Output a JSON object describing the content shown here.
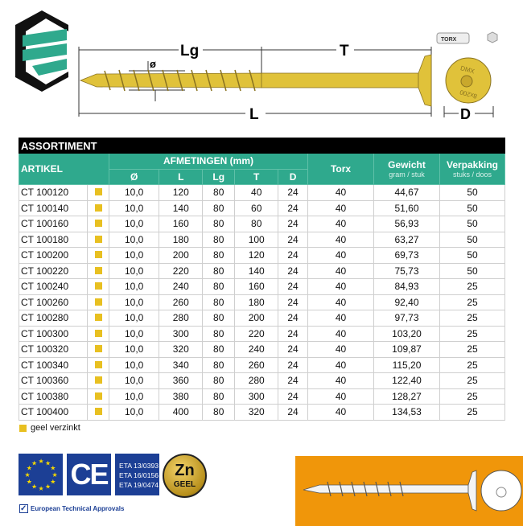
{
  "drawing": {
    "labels": {
      "lg": "Lg",
      "t": "T",
      "l": "L",
      "d": "D",
      "diameter": "ø",
      "bit": "TORX",
      "head_text_top": "DMX",
      "head_text_bottom": "8x200"
    }
  },
  "table": {
    "title": "ASSORTIMENT",
    "headers": {
      "artikel": "ARTIKEL",
      "afmetingen": "AFMETINGEN (mm)",
      "dims": [
        "Ø",
        "L",
        "Lg",
        "T",
        "D"
      ],
      "torx": "Torx",
      "gewicht": "Gewicht",
      "gewicht_unit": "gram / stuk",
      "verpakking": "Verpakking",
      "verpakking_unit": "stuks / doos"
    },
    "rows": [
      [
        "CT 100120",
        "10,0",
        "120",
        "80",
        "40",
        "24",
        "40",
        "44,67",
        "50"
      ],
      [
        "CT 100140",
        "10,0",
        "140",
        "80",
        "60",
        "24",
        "40",
        "51,60",
        "50"
      ],
      [
        "CT 100160",
        "10,0",
        "160",
        "80",
        "80",
        "24",
        "40",
        "56,93",
        "50"
      ],
      [
        "CT 100180",
        "10,0",
        "180",
        "80",
        "100",
        "24",
        "40",
        "63,27",
        "50"
      ],
      [
        "CT 100200",
        "10,0",
        "200",
        "80",
        "120",
        "24",
        "40",
        "69,73",
        "50"
      ],
      [
        "CT 100220",
        "10,0",
        "220",
        "80",
        "140",
        "24",
        "40",
        "75,73",
        "50"
      ],
      [
        "CT 100240",
        "10,0",
        "240",
        "80",
        "160",
        "24",
        "40",
        "84,93",
        "25"
      ],
      [
        "CT 100260",
        "10,0",
        "260",
        "80",
        "180",
        "24",
        "40",
        "92,40",
        "25"
      ],
      [
        "CT 100280",
        "10,0",
        "280",
        "80",
        "200",
        "24",
        "40",
        "97,73",
        "25"
      ],
      [
        "CT 100300",
        "10,0",
        "300",
        "80",
        "220",
        "24",
        "40",
        "103,20",
        "25"
      ],
      [
        "CT 100320",
        "10,0",
        "320",
        "80",
        "240",
        "24",
        "40",
        "109,87",
        "25"
      ],
      [
        "CT 100340",
        "10,0",
        "340",
        "80",
        "260",
        "24",
        "40",
        "115,20",
        "25"
      ],
      [
        "CT 100360",
        "10,0",
        "360",
        "80",
        "280",
        "24",
        "40",
        "122,40",
        "25"
      ],
      [
        "CT 100380",
        "10,0",
        "380",
        "80",
        "300",
        "24",
        "40",
        "128,27",
        "25"
      ],
      [
        "CT 100400",
        "10,0",
        "400",
        "80",
        "320",
        "24",
        "40",
        "134,53",
        "25"
      ]
    ]
  },
  "legend": {
    "label": "geel verzinkt",
    "color": "#e8c021"
  },
  "badges": {
    "ce": "CE",
    "eta": [
      "ETA 13/0393",
      "ETA 16/0156",
      "ETA 19/0474"
    ],
    "zn": "Zn",
    "geel": "GEEL",
    "approvals": "European Technical Approvals"
  },
  "colors": {
    "teal": "#2fa98d",
    "screw": "#e0c23a",
    "orange": "#f0960a",
    "eu_blue": "#1c3f95"
  }
}
